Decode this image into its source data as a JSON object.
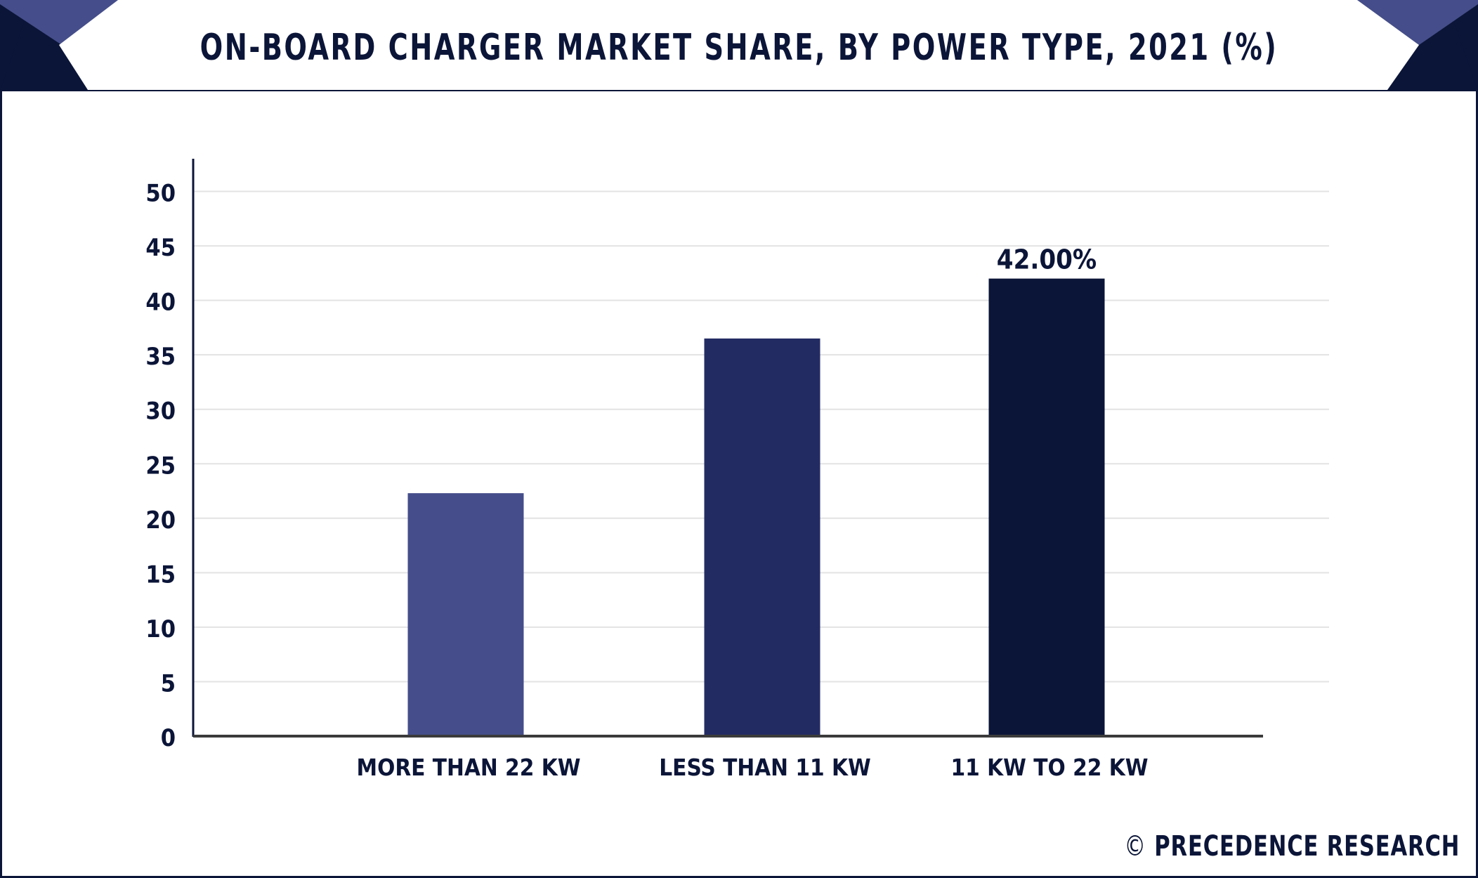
{
  "header": {
    "title": "ON-BOARD CHARGER MARKET SHARE, BY POWER TYPE, 2021 (%)"
  },
  "colors": {
    "navy": "#0b1538",
    "accent": "#454e8a",
    "bar_1": "#454e8a",
    "bar_2": "#232b63",
    "bar_3": "#0b1538"
  },
  "chart_data": {
    "type": "bar",
    "title": "ON-BOARD CHARGER MARKET SHARE, BY POWER TYPE, 2021 (%)",
    "categories": [
      "MORE THAN 22 KW",
      "LESS THAN 11 KW",
      "11 KW TO 22 KW"
    ],
    "values": [
      22.3,
      36.5,
      42.0
    ],
    "data_labels": [
      "",
      "",
      "42.00%"
    ],
    "yticks": [
      0,
      5,
      10,
      15,
      20,
      25,
      30,
      35,
      40,
      45,
      50
    ],
    "ylim": [
      0,
      53
    ],
    "grid": true,
    "xlabel": "",
    "ylabel": ""
  },
  "watermark": {
    "symbol": "©",
    "text": "PRECEDENCE RESEARCH"
  }
}
